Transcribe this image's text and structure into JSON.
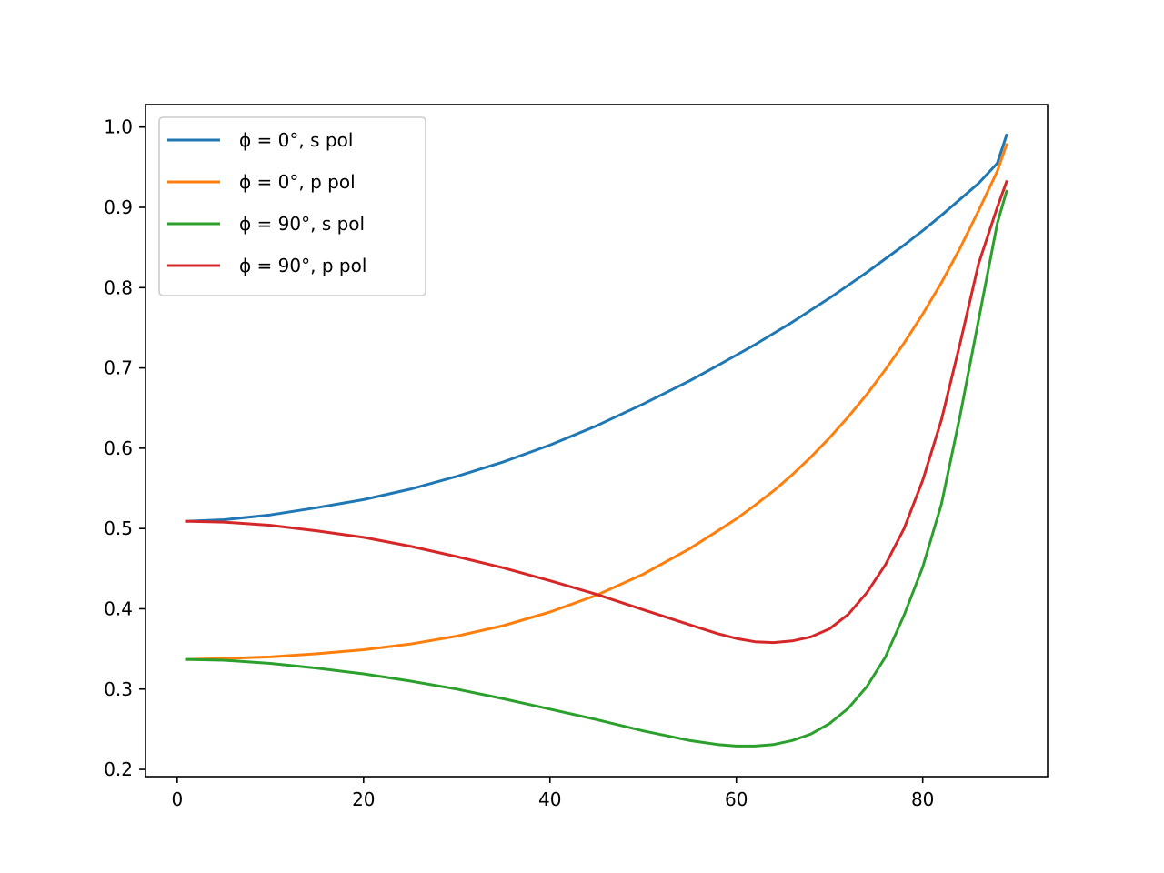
{
  "chart_data": {
    "type": "line",
    "title": "",
    "xlabel": "",
    "ylabel": "",
    "xlim": [
      -3.4,
      93.4
    ],
    "ylim": [
      0.191,
      1.028
    ],
    "xticks": [
      0,
      20,
      40,
      60,
      80
    ],
    "xtick_labels": [
      "0",
      "20",
      "40",
      "60",
      "80"
    ],
    "yticks": [
      0.2,
      0.3,
      0.4,
      0.5,
      0.6,
      0.7,
      0.8,
      0.9,
      1.0
    ],
    "ytick_labels": [
      "0.2",
      "0.3",
      "0.4",
      "0.5",
      "0.6",
      "0.7",
      "0.8",
      "0.9",
      "1.0"
    ],
    "grid": false,
    "legend_position": "top-left",
    "x": [
      1,
      5,
      10,
      15,
      20,
      25,
      30,
      35,
      40,
      45,
      50,
      55,
      58,
      60,
      62,
      64,
      66,
      68,
      70,
      72,
      74,
      76,
      78,
      80,
      82,
      84,
      86,
      88,
      89
    ],
    "series": [
      {
        "name": "ϕ = 0°, s pol",
        "color": "#1f77b4",
        "values": [
          0.509,
          0.511,
          0.517,
          0.526,
          0.536,
          0.549,
          0.565,
          0.583,
          0.604,
          0.628,
          0.655,
          0.684,
          0.703,
          0.716,
          0.729,
          0.743,
          0.757,
          0.772,
          0.787,
          0.803,
          0.819,
          0.836,
          0.853,
          0.871,
          0.89,
          0.91,
          0.93,
          0.955,
          0.99
        ]
      },
      {
        "name": "ϕ = 0°, p pol",
        "color": "#ff7f0e",
        "values": [
          0.337,
          0.338,
          0.34,
          0.344,
          0.349,
          0.356,
          0.366,
          0.379,
          0.396,
          0.417,
          0.443,
          0.475,
          0.497,
          0.512,
          0.529,
          0.547,
          0.567,
          0.589,
          0.613,
          0.639,
          0.667,
          0.698,
          0.731,
          0.767,
          0.806,
          0.849,
          0.896,
          0.945,
          0.978
        ]
      },
      {
        "name": "ϕ = 90°, s pol",
        "color": "#2ca02c",
        "values": [
          0.337,
          0.336,
          0.332,
          0.326,
          0.319,
          0.31,
          0.3,
          0.288,
          0.275,
          0.262,
          0.248,
          0.236,
          0.231,
          0.229,
          0.229,
          0.231,
          0.236,
          0.244,
          0.257,
          0.276,
          0.303,
          0.34,
          0.392,
          0.452,
          0.53,
          0.64,
          0.76,
          0.88,
          0.92
        ]
      },
      {
        "name": "ϕ = 90°, p pol",
        "color": "#d62728",
        "values": [
          0.509,
          0.508,
          0.504,
          0.497,
          0.489,
          0.478,
          0.465,
          0.451,
          0.435,
          0.418,
          0.399,
          0.38,
          0.369,
          0.363,
          0.359,
          0.358,
          0.36,
          0.365,
          0.375,
          0.393,
          0.42,
          0.455,
          0.5,
          0.56,
          0.635,
          0.73,
          0.83,
          0.9,
          0.932
        ]
      }
    ]
  }
}
